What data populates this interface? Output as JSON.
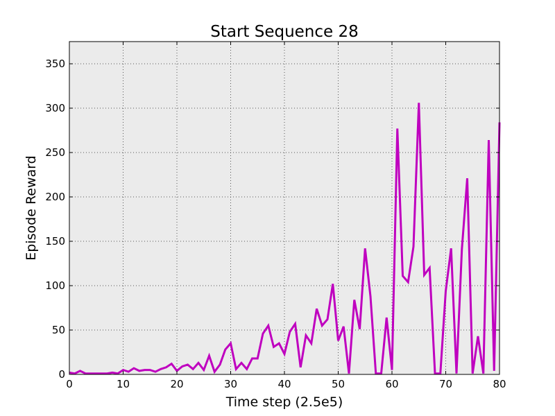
{
  "chart_data": {
    "type": "line",
    "title": "Start Sequence 28",
    "xlabel": "Time step (2.5e5)",
    "ylabel": "Episode Reward",
    "xlim": [
      0,
      80
    ],
    "ylim": [
      0,
      375
    ],
    "xticks": [
      0,
      10,
      20,
      30,
      40,
      50,
      60,
      70,
      80
    ],
    "yticks": [
      0,
      50,
      100,
      150,
      200,
      250,
      300,
      350
    ],
    "grid": true,
    "legend": "none",
    "colors": {
      "line": "#bf00bf",
      "plot_background": "#ebebeb",
      "grid": "#555555"
    },
    "series": [
      {
        "x": [
          0,
          1,
          2,
          3,
          4,
          5,
          6,
          7,
          8,
          9,
          10,
          11,
          12,
          13,
          14,
          15,
          16,
          17,
          18,
          19,
          20,
          21,
          22,
          23,
          24,
          25,
          26,
          27,
          28,
          29,
          30,
          31,
          32,
          33,
          34,
          35,
          36,
          37,
          38,
          39,
          40,
          41,
          42,
          43,
          44,
          45,
          46,
          47,
          48,
          49,
          50,
          51,
          52,
          53,
          54,
          55,
          56,
          57,
          58,
          59,
          60,
          61,
          62,
          63,
          64,
          65,
          66,
          67,
          68,
          69,
          70,
          71,
          72,
          73,
          74,
          75,
          76,
          77,
          78,
          79,
          80
        ],
        "values": [
          2,
          1,
          4,
          1,
          1,
          1,
          1,
          1,
          2,
          1,
          5,
          3,
          7,
          4,
          5,
          5,
          3,
          6,
          8,
          12,
          4,
          9,
          11,
          6,
          13,
          5,
          21,
          3,
          11,
          28,
          35,
          6,
          13,
          6,
          18,
          18,
          46,
          55,
          31,
          35,
          23,
          48,
          57,
          8,
          44,
          35,
          74,
          55,
          62,
          102,
          38,
          54,
          1,
          84,
          51,
          142,
          88,
          1,
          1,
          64,
          5,
          277,
          111,
          104,
          144,
          306,
          112,
          120,
          1,
          1,
          94,
          142,
          1,
          141,
          221,
          1,
          43,
          1,
          264,
          4,
          284
        ]
      }
    ]
  }
}
